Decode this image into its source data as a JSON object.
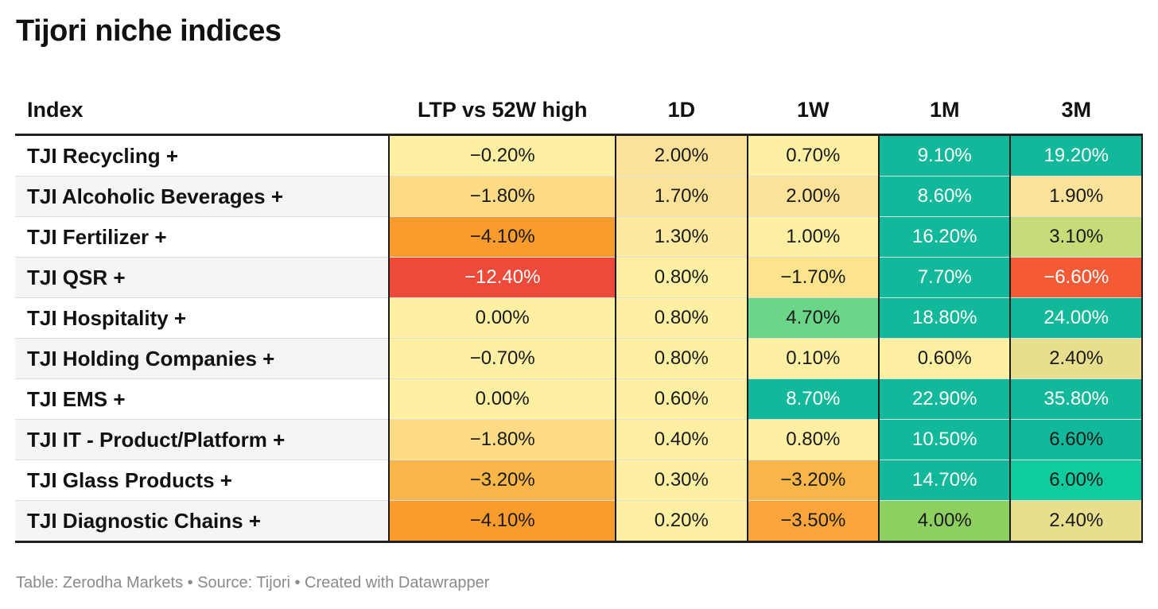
{
  "title": "Tijori niche indices",
  "footer": "Table: Zerodha Markets • Source: Tijori • Created with Datawrapper",
  "chart_data": {
    "type": "table",
    "title": "Tijori niche indices",
    "columns": [
      "Index",
      "LTP vs 52W high",
      "1D",
      "1W",
      "1M",
      "3M"
    ],
    "rows": [
      {
        "name": "TJI Recycling +",
        "cells": [
          {
            "text": "−0.20%",
            "bg": "#fdf0a3",
            "fg": "#1a1a1a"
          },
          {
            "text": "2.00%",
            "bg": "#fde29a",
            "fg": "#1a1a1a"
          },
          {
            "text": "0.70%",
            "bg": "#fdf0a3",
            "fg": "#1a1a1a"
          },
          {
            "text": "9.10%",
            "bg": "#12b89a",
            "fg": "#ffffff"
          },
          {
            "text": "19.20%",
            "bg": "#12b89a",
            "fg": "#ffffff"
          }
        ]
      },
      {
        "name": "TJI Alcoholic Beverages +",
        "cells": [
          {
            "text": "−1.80%",
            "bg": "#fddc85",
            "fg": "#1a1a1a"
          },
          {
            "text": "1.70%",
            "bg": "#fde29a",
            "fg": "#1a1a1a"
          },
          {
            "text": "2.00%",
            "bg": "#fde29a",
            "fg": "#1a1a1a"
          },
          {
            "text": "8.60%",
            "bg": "#12b89a",
            "fg": "#ffffff"
          },
          {
            "text": "1.90%",
            "bg": "#fde29a",
            "fg": "#1a1a1a"
          }
        ]
      },
      {
        "name": "TJI Fertilizer +",
        "cells": [
          {
            "text": "−4.10%",
            "bg": "#fa9b2d",
            "fg": "#1a1a1a"
          },
          {
            "text": "1.30%",
            "bg": "#fde9a0",
            "fg": "#1a1a1a"
          },
          {
            "text": "1.00%",
            "bg": "#fdf0a3",
            "fg": "#1a1a1a"
          },
          {
            "text": "16.20%",
            "bg": "#12b89a",
            "fg": "#ffffff"
          },
          {
            "text": "3.10%",
            "bg": "#c5dc78",
            "fg": "#1a1a1a"
          }
        ]
      },
      {
        "name": "TJI QSR +",
        "cells": [
          {
            "text": "−12.40%",
            "bg": "#ee4a3a",
            "fg": "#ffffff"
          },
          {
            "text": "0.80%",
            "bg": "#fdf0a3",
            "fg": "#1a1a1a"
          },
          {
            "text": "−1.70%",
            "bg": "#fde38c",
            "fg": "#1a1a1a"
          },
          {
            "text": "7.70%",
            "bg": "#12b89a",
            "fg": "#ffffff"
          },
          {
            "text": "−6.60%",
            "bg": "#f55a36",
            "fg": "#ffffff"
          }
        ]
      },
      {
        "name": "TJI Hospitality +",
        "cells": [
          {
            "text": "0.00%",
            "bg": "#fdf0a3",
            "fg": "#1a1a1a"
          },
          {
            "text": "0.80%",
            "bg": "#fdf0a3",
            "fg": "#1a1a1a"
          },
          {
            "text": "4.70%",
            "bg": "#6cd688",
            "fg": "#1a1a1a"
          },
          {
            "text": "18.80%",
            "bg": "#12b89a",
            "fg": "#ffffff"
          },
          {
            "text": "24.00%",
            "bg": "#12b89a",
            "fg": "#ffffff"
          }
        ]
      },
      {
        "name": "TJI Holding Companies +",
        "cells": [
          {
            "text": "−0.70%",
            "bg": "#fdf0a3",
            "fg": "#1a1a1a"
          },
          {
            "text": "0.80%",
            "bg": "#fdf0a3",
            "fg": "#1a1a1a"
          },
          {
            "text": "0.10%",
            "bg": "#fdf0a3",
            "fg": "#1a1a1a"
          },
          {
            "text": "0.60%",
            "bg": "#fdf0a3",
            "fg": "#1a1a1a"
          },
          {
            "text": "2.40%",
            "bg": "#e8df8e",
            "fg": "#1a1a1a"
          }
        ]
      },
      {
        "name": "TJI EMS +",
        "cells": [
          {
            "text": "0.00%",
            "bg": "#fdf0a3",
            "fg": "#1a1a1a"
          },
          {
            "text": "0.60%",
            "bg": "#fdf0a3",
            "fg": "#1a1a1a"
          },
          {
            "text": "8.70%",
            "bg": "#12b89a",
            "fg": "#ffffff"
          },
          {
            "text": "22.90%",
            "bg": "#12b89a",
            "fg": "#ffffff"
          },
          {
            "text": "35.80%",
            "bg": "#12b89a",
            "fg": "#ffffff"
          }
        ]
      },
      {
        "name": "TJI IT - Product/Platform +",
        "cells": [
          {
            "text": "−1.80%",
            "bg": "#fddc85",
            "fg": "#1a1a1a"
          },
          {
            "text": "0.40%",
            "bg": "#fdf0a3",
            "fg": "#1a1a1a"
          },
          {
            "text": "0.80%",
            "bg": "#fdf0a3",
            "fg": "#1a1a1a"
          },
          {
            "text": "10.50%",
            "bg": "#12b89a",
            "fg": "#ffffff"
          },
          {
            "text": "6.60%",
            "bg": "#12b89a",
            "fg": "#1a1a1a"
          }
        ]
      },
      {
        "name": "TJI Glass Products +",
        "cells": [
          {
            "text": "−3.20%",
            "bg": "#fbb64a",
            "fg": "#1a1a1a"
          },
          {
            "text": "0.30%",
            "bg": "#fdf0a3",
            "fg": "#1a1a1a"
          },
          {
            "text": "−3.20%",
            "bg": "#fbb64a",
            "fg": "#1a1a1a"
          },
          {
            "text": "14.70%",
            "bg": "#12b89a",
            "fg": "#ffffff"
          },
          {
            "text": "6.00%",
            "bg": "#0fcc9e",
            "fg": "#1a1a1a"
          }
        ]
      },
      {
        "name": "TJI Diagnostic Chains +",
        "cells": [
          {
            "text": "−4.10%",
            "bg": "#fa9b2d",
            "fg": "#1a1a1a"
          },
          {
            "text": "0.20%",
            "bg": "#fdf0a3",
            "fg": "#1a1a1a"
          },
          {
            "text": "−3.50%",
            "bg": "#fba53a",
            "fg": "#1a1a1a"
          },
          {
            "text": "4.00%",
            "bg": "#8ecf62",
            "fg": "#1a1a1a"
          },
          {
            "text": "2.40%",
            "bg": "#e8df8e",
            "fg": "#1a1a1a"
          }
        ]
      }
    ]
  }
}
